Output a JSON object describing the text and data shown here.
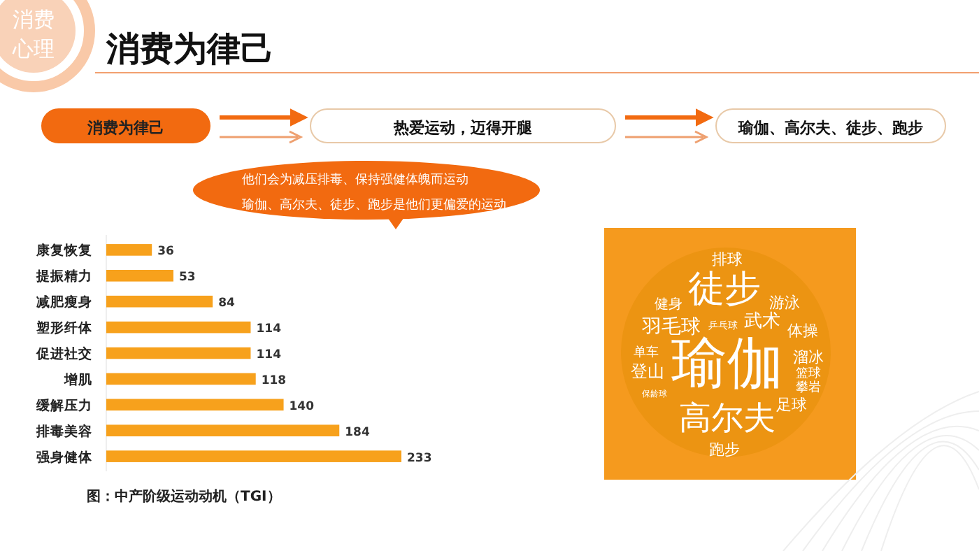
{
  "chart_data": {
    "type": "bar",
    "orientation": "horizontal",
    "title": "消费为律己",
    "categories": [
      "康复恢复",
      "提振精力",
      "减肥瘦身",
      "塑形纤体",
      "促进社交",
      "增肌",
      "缓解压力",
      "排毒美容",
      "强身健体"
    ],
    "values": [
      36,
      53,
      84,
      114,
      114,
      118,
      140,
      184,
      233
    ],
    "color": "#f7a11c",
    "data_labels": true,
    "annotations": [
      "消费",
      "心理",
      "消费为律己",
      "热爱运动，迈得开腿",
      "瑜伽、高尔夫、徒步、跑步",
      "他们会为减压排毒、保持强健体魄而运动",
      "瑜伽、高尔夫、徒步、跑步是他们更偏爱的运动",
      "图：中产阶级运动动机（TGI）",
      "排球",
      "徒步",
      "健身",
      "游泳",
      "羽毛球",
      "乒乓球",
      "武术",
      "体操",
      "单车",
      "瑜伽",
      "溜冰",
      "登山",
      "篮球",
      "攀岩",
      "保龄球",
      "高尔夫",
      "足球",
      "跑步"
    ]
  }
}
